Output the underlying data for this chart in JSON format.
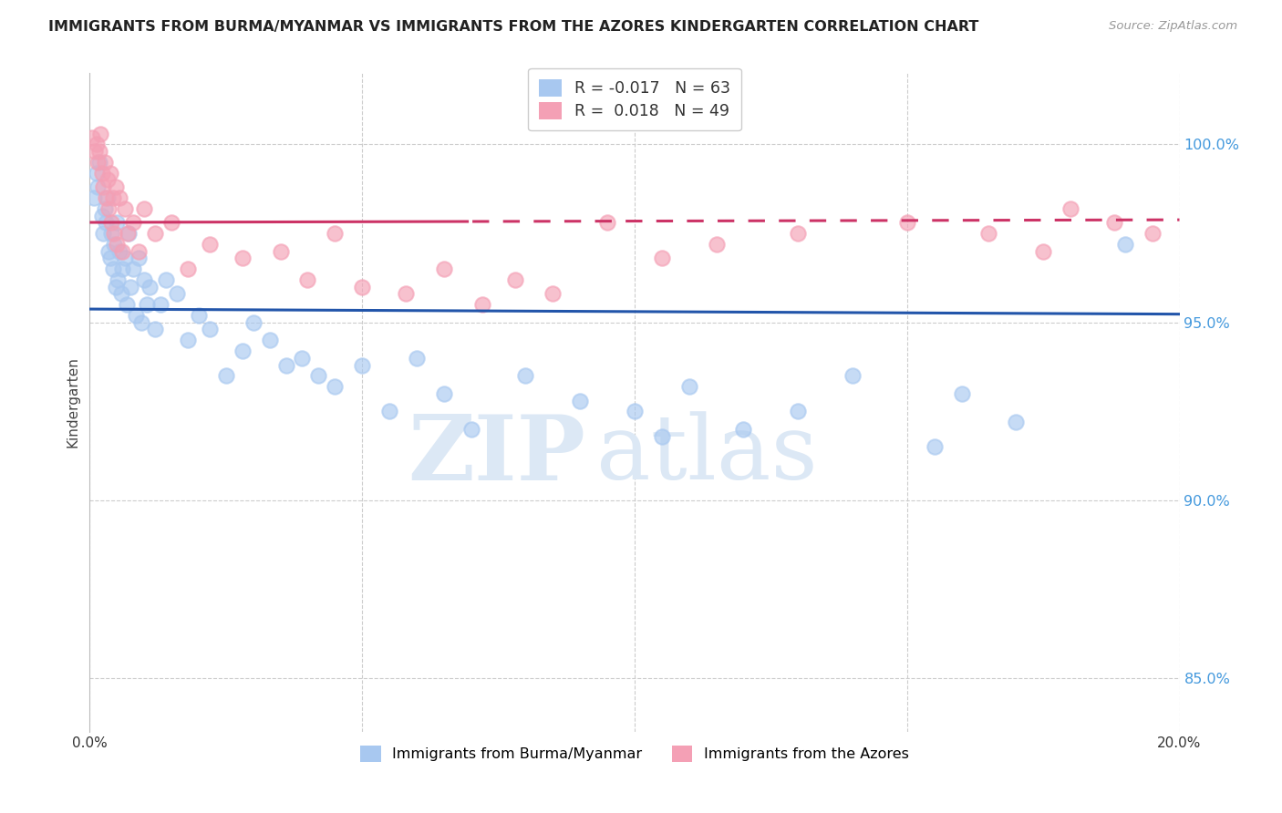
{
  "title": "IMMIGRANTS FROM BURMA/MYANMAR VS IMMIGRANTS FROM THE AZORES KINDERGARTEN CORRELATION CHART",
  "source": "Source: ZipAtlas.com",
  "ylabel": "Kindergarten",
  "xlim": [
    0.0,
    20.0
  ],
  "ylim": [
    83.5,
    102.0
  ],
  "yticks": [
    85.0,
    90.0,
    95.0,
    100.0
  ],
  "ytick_labels": [
    "85.0%",
    "90.0%",
    "95.0%",
    "100.0%"
  ],
  "legend_blue_r": "-0.017",
  "legend_blue_n": "63",
  "legend_pink_r": "0.018",
  "legend_pink_n": "49",
  "legend_label_blue": "Immigrants from Burma/Myanmar",
  "legend_label_pink": "Immigrants from the Azores",
  "color_blue": "#a8c8f0",
  "color_pink": "#f4a0b5",
  "line_color_blue": "#2255aa",
  "line_color_pink": "#cc3366",
  "watermark_zip": "ZIP",
  "watermark_atlas": "atlas",
  "blue_x": [
    0.08,
    0.12,
    0.15,
    0.18,
    0.22,
    0.25,
    0.28,
    0.3,
    0.32,
    0.35,
    0.38,
    0.4,
    0.42,
    0.45,
    0.48,
    0.5,
    0.52,
    0.55,
    0.58,
    0.6,
    0.65,
    0.68,
    0.72,
    0.75,
    0.8,
    0.85,
    0.9,
    0.95,
    1.0,
    1.05,
    1.1,
    1.2,
    1.3,
    1.4,
    1.6,
    1.8,
    2.0,
    2.2,
    2.5,
    2.8,
    3.0,
    3.3,
    3.6,
    3.9,
    4.2,
    4.5,
    5.0,
    5.5,
    6.0,
    6.5,
    7.0,
    8.0,
    9.0,
    10.0,
    10.5,
    11.0,
    12.0,
    13.0,
    14.0,
    15.5,
    16.0,
    17.0,
    19.0
  ],
  "blue_y": [
    98.5,
    99.2,
    98.8,
    99.5,
    98.0,
    97.5,
    98.2,
    97.8,
    98.5,
    97.0,
    96.8,
    97.5,
    96.5,
    97.2,
    96.0,
    97.8,
    96.2,
    97.0,
    95.8,
    96.5,
    96.8,
    95.5,
    97.5,
    96.0,
    96.5,
    95.2,
    96.8,
    95.0,
    96.2,
    95.5,
    96.0,
    94.8,
    95.5,
    96.2,
    95.8,
    94.5,
    95.2,
    94.8,
    93.5,
    94.2,
    95.0,
    94.5,
    93.8,
    94.0,
    93.5,
    93.2,
    93.8,
    92.5,
    94.0,
    93.0,
    92.0,
    93.5,
    92.8,
    92.5,
    91.8,
    93.2,
    92.0,
    92.5,
    93.5,
    91.5,
    93.0,
    92.2,
    97.2
  ],
  "pink_x": [
    0.05,
    0.1,
    0.12,
    0.15,
    0.18,
    0.2,
    0.22,
    0.25,
    0.28,
    0.3,
    0.32,
    0.35,
    0.38,
    0.4,
    0.42,
    0.45,
    0.48,
    0.5,
    0.55,
    0.6,
    0.65,
    0.7,
    0.8,
    0.9,
    1.0,
    1.2,
    1.5,
    1.8,
    2.2,
    2.8,
    3.5,
    4.0,
    4.5,
    5.0,
    5.8,
    6.5,
    7.2,
    7.8,
    8.5,
    9.5,
    10.5,
    11.5,
    13.0,
    15.0,
    16.5,
    17.5,
    18.0,
    18.8,
    19.5
  ],
  "pink_y": [
    100.2,
    99.8,
    100.0,
    99.5,
    99.8,
    100.3,
    99.2,
    98.8,
    99.5,
    98.5,
    99.0,
    98.2,
    99.2,
    97.8,
    98.5,
    97.5,
    98.8,
    97.2,
    98.5,
    97.0,
    98.2,
    97.5,
    97.8,
    97.0,
    98.2,
    97.5,
    97.8,
    96.5,
    97.2,
    96.8,
    97.0,
    96.2,
    97.5,
    96.0,
    95.8,
    96.5,
    95.5,
    96.2,
    95.8,
    97.8,
    96.8,
    97.2,
    97.5,
    97.8,
    97.5,
    97.0,
    98.2,
    97.8,
    97.5
  ]
}
